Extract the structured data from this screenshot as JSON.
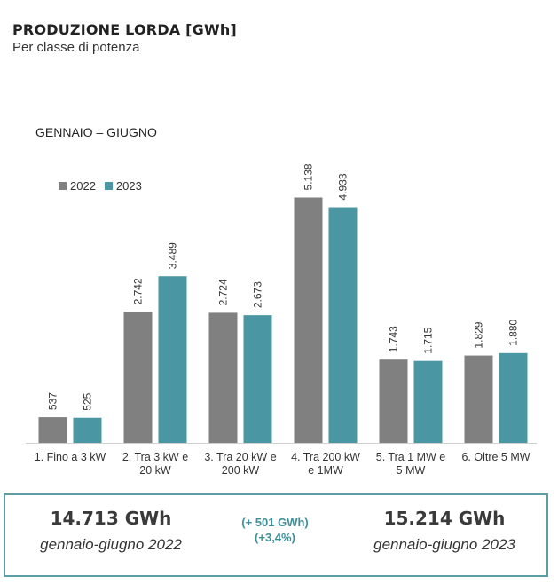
{
  "header": {
    "title": "PRODUZIONE LORDA [GWh]",
    "subtitle": "Per classe di potenza"
  },
  "period_label": "GENNAIO – GIUGNO",
  "colors": {
    "series_2022": "#808080",
    "series_2023": "#4a97a3",
    "accent": "#5b9ea6"
  },
  "chart_data": {
    "type": "bar",
    "categories": [
      [
        "1. Fino a 3 kW"
      ],
      [
        "2. Tra 3 kW e",
        "20 kW"
      ],
      [
        "3. Tra 20 kW e",
        "200 kW"
      ],
      [
        "4. Tra 200 kW",
        "e 1MW"
      ],
      [
        "5. Tra 1 MW e",
        "5 MW"
      ],
      [
        "6. Oltre 5 MW"
      ]
    ],
    "series": [
      {
        "name": "2022",
        "values": [
          537,
          2742,
          2724,
          5138,
          1743,
          1829
        ],
        "labels": [
          "537",
          "2.742",
          "2.724",
          "5.138",
          "1.743",
          "1.829"
        ]
      },
      {
        "name": "2023",
        "values": [
          525,
          3489,
          2673,
          4933,
          1715,
          1880
        ],
        "labels": [
          "525",
          "3.489",
          "2.673",
          "4.933",
          "1.715",
          "1.880"
        ]
      }
    ],
    "ylim": [
      0,
      5500
    ],
    "legend_position": "top-left"
  },
  "summary": {
    "left_value": "14.713 GWh",
    "left_period": "gennaio-giugno 2022",
    "delta_abs": "(+ 501 GWh)",
    "delta_pct": "(+3,4%)",
    "right_value": "15.214 GWh",
    "right_period": "gennaio-giugno 2023"
  }
}
